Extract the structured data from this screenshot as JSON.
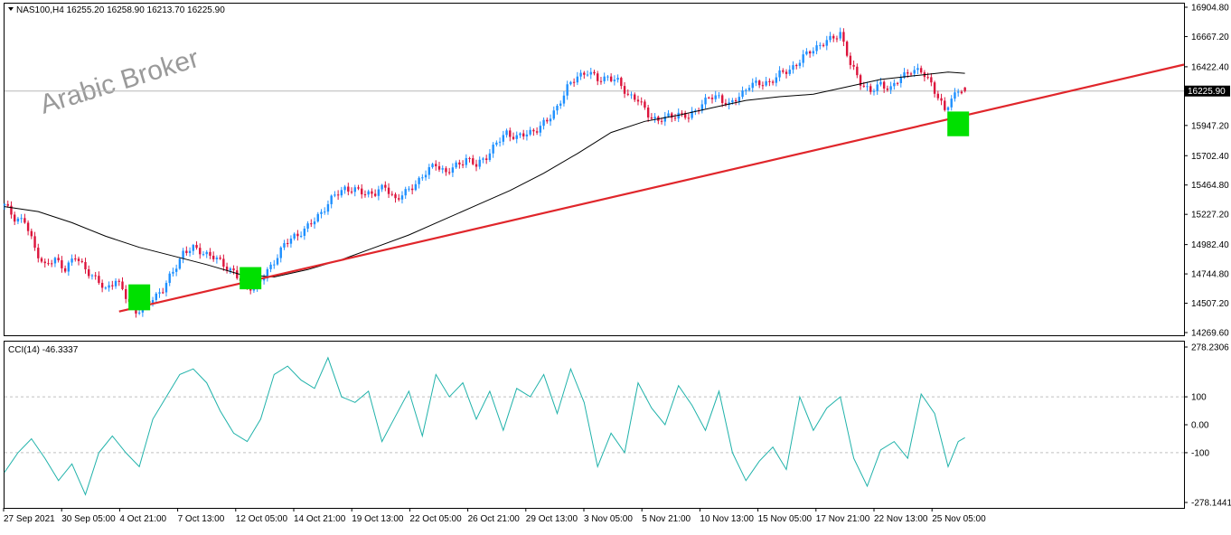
{
  "colors": {
    "bull": "#1e90ff",
    "bear": "#dc143c",
    "ma": "#000000",
    "trendline": "#e0262b",
    "marker": "#00e000",
    "cci": "#20b2aa",
    "grid": "#c0c0c0",
    "bg": "#ffffff"
  },
  "chart_data": [
    {
      "type": "candlestick",
      "title": "NAS100,H4  16255.20 16258.90 16213.70 16225.90",
      "symbol": "NAS100",
      "timeframe": "H4",
      "last_bar": {
        "open": 16255.2,
        "high": 16258.9,
        "low": 16213.7,
        "close": 16225.9
      },
      "current_price_label": "16225.90",
      "current_price": 16225.9,
      "watermark": "Arabic Broker",
      "ylim": [
        14269.6,
        16904.8
      ],
      "y_ticks": [
        "16904.80",
        "16667.20",
        "16422.40",
        "15947.20",
        "15702.40",
        "15464.80",
        "15227.20",
        "14982.40",
        "14744.80",
        "14507.20",
        "14269.60"
      ],
      "x_ticks": [
        "27 Sep 2021",
        "30 Sep 05:00",
        "4 Oct 21:00",
        "7 Oct 13:00",
        "12 Oct 05:00",
        "14 Oct 21:00",
        "19 Oct 13:00",
        "22 Oct 05:00",
        "26 Oct 21:00",
        "29 Oct 13:00",
        "3 Nov 05:00",
        "5 Nov 21:00",
        "10 Nov 13:00",
        "15 Nov 05:00",
        "17 Nov 21:00",
        "22 Nov 13:00",
        "25 Nov 05:00"
      ],
      "close_path": [
        [
          0,
          15300
        ],
        [
          3,
          15200
        ],
        [
          6,
          15170
        ],
        [
          9,
          14950
        ],
        [
          12,
          14810
        ],
        [
          15,
          14860
        ],
        [
          18,
          14790
        ],
        [
          21,
          14880
        ],
        [
          24,
          14790
        ],
        [
          27,
          14700
        ],
        [
          30,
          14620
        ],
        [
          33,
          14700
        ],
        [
          36,
          14560
        ],
        [
          39,
          14440
        ],
        [
          41,
          14470
        ],
        [
          44,
          14550
        ],
        [
          47,
          14620
        ],
        [
          50,
          14760
        ],
        [
          53,
          14920
        ],
        [
          56,
          14950
        ],
        [
          59,
          14920
        ],
        [
          62,
          14880
        ],
        [
          65,
          14820
        ],
        [
          68,
          14760
        ],
        [
          71,
          14650
        ],
        [
          74,
          14640
        ],
        [
          77,
          14720
        ],
        [
          80,
          14850
        ],
        [
          83,
          14980
        ],
        [
          86,
          15050
        ],
        [
          89,
          15100
        ],
        [
          92,
          15180
        ],
        [
          95,
          15280
        ],
        [
          98,
          15380
        ],
        [
          101,
          15440
        ],
        [
          104,
          15420
        ],
        [
          107,
          15400
        ],
        [
          110,
          15400
        ],
        [
          113,
          15450
        ],
        [
          116,
          15350
        ],
        [
          119,
          15400
        ],
        [
          122,
          15480
        ],
        [
          125,
          15560
        ],
        [
          128,
          15640
        ],
        [
          131,
          15560
        ],
        [
          134,
          15620
        ],
        [
          137,
          15680
        ],
        [
          140,
          15620
        ],
        [
          143,
          15700
        ],
        [
          146,
          15800
        ],
        [
          149,
          15890
        ],
        [
          152,
          15850
        ],
        [
          155,
          15880
        ],
        [
          158,
          15920
        ],
        [
          161,
          15980
        ],
        [
          164,
          16100
        ],
        [
          167,
          16250
        ],
        [
          170,
          16350
        ],
        [
          173,
          16380
        ],
        [
          176,
          16320
        ],
        [
          179,
          16340
        ],
        [
          182,
          16300
        ],
        [
          185,
          16200
        ],
        [
          188,
          16150
        ],
        [
          191,
          16040
        ],
        [
          194,
          15980
        ],
        [
          197,
          16020
        ],
        [
          200,
          16040
        ],
        [
          203,
          16010
        ],
        [
          206,
          16100
        ],
        [
          209,
          16170
        ],
        [
          212,
          16180
        ],
        [
          215,
          16110
        ],
        [
          218,
          16180
        ],
        [
          221,
          16280
        ],
        [
          224,
          16280
        ],
        [
          227,
          16300
        ],
        [
          230,
          16360
        ],
        [
          233,
          16400
        ],
        [
          236,
          16470
        ],
        [
          239,
          16550
        ],
        [
          242,
          16600
        ],
        [
          245,
          16640
        ],
        [
          248,
          16700
        ],
        [
          251,
          16440
        ],
        [
          254,
          16300
        ],
        [
          257,
          16220
        ],
        [
          260,
          16280
        ],
        [
          263,
          16250
        ],
        [
          266,
          16330
        ],
        [
          269,
          16400
        ],
        [
          272,
          16380
        ],
        [
          275,
          16290
        ],
        [
          277,
          16180
        ],
        [
          279,
          16060
        ],
        [
          281,
          16160
        ],
        [
          283,
          16240
        ],
        [
          285,
          16225.9
        ]
      ],
      "ma_path": [
        [
          0,
          15290
        ],
        [
          10,
          15250
        ],
        [
          20,
          15160
        ],
        [
          30,
          15050
        ],
        [
          40,
          14960
        ],
        [
          50,
          14890
        ],
        [
          60,
          14820
        ],
        [
          70,
          14740
        ],
        [
          80,
          14720
        ],
        [
          90,
          14780
        ],
        [
          100,
          14860
        ],
        [
          110,
          14960
        ],
        [
          120,
          15060
        ],
        [
          130,
          15180
        ],
        [
          140,
          15300
        ],
        [
          150,
          15420
        ],
        [
          160,
          15560
        ],
        [
          170,
          15720
        ],
        [
          180,
          15890
        ],
        [
          190,
          15980
        ],
        [
          200,
          16030
        ],
        [
          210,
          16090
        ],
        [
          220,
          16150
        ],
        [
          230,
          16180
        ],
        [
          240,
          16200
        ],
        [
          250,
          16260
        ],
        [
          260,
          16320
        ],
        [
          270,
          16350
        ],
        [
          280,
          16380
        ],
        [
          285,
          16370
        ]
      ],
      "trendline": {
        "start": [
          34,
          14440
        ],
        "end": [
          350,
          16440
        ]
      },
      "markers": [
        {
          "x": 40,
          "low": 14450,
          "high": 14660
        },
        {
          "x": 73,
          "low": 14620,
          "high": 14800
        },
        {
          "x": 283,
          "low": 15860,
          "high": 16060
        }
      ],
      "x_index_range": [
        0,
        350
      ]
    },
    {
      "type": "line",
      "title": "CCI(14) -46.3337",
      "indicator": "CCI(14)",
      "last_value": -46.3337,
      "ylim": [
        -278.1441,
        278.2306
      ],
      "y_ticks": [
        "278.2306",
        "100",
        "0.00",
        "-100",
        "-278.1441"
      ],
      "levels": [
        100,
        -100
      ],
      "series": [
        {
          "values": [
            [
              0,
              -170
            ],
            [
              4,
              -100
            ],
            [
              8,
              -50
            ],
            [
              12,
              -120
            ],
            [
              16,
              -200
            ],
            [
              20,
              -140
            ],
            [
              24,
              -250
            ],
            [
              28,
              -100
            ],
            [
              32,
              -40
            ],
            [
              36,
              -100
            ],
            [
              40,
              -150
            ],
            [
              44,
              20
            ],
            [
              48,
              100
            ],
            [
              52,
              180
            ],
            [
              56,
              200
            ],
            [
              60,
              150
            ],
            [
              64,
              50
            ],
            [
              68,
              -30
            ],
            [
              72,
              -60
            ],
            [
              76,
              20
            ],
            [
              80,
              180
            ],
            [
              84,
              210
            ],
            [
              88,
              160
            ],
            [
              92,
              130
            ],
            [
              96,
              240
            ],
            [
              100,
              100
            ],
            [
              104,
              80
            ],
            [
              108,
              120
            ],
            [
              112,
              -60
            ],
            [
              116,
              30
            ],
            [
              120,
              120
            ],
            [
              124,
              -40
            ],
            [
              128,
              180
            ],
            [
              132,
              100
            ],
            [
              136,
              150
            ],
            [
              140,
              20
            ],
            [
              144,
              120
            ],
            [
              148,
              -20
            ],
            [
              152,
              130
            ],
            [
              156,
              100
            ],
            [
              160,
              180
            ],
            [
              164,
              40
            ],
            [
              168,
              200
            ],
            [
              172,
              80
            ],
            [
              176,
              -150
            ],
            [
              180,
              -30
            ],
            [
              184,
              -100
            ],
            [
              188,
              150
            ],
            [
              192,
              60
            ],
            [
              196,
              0
            ],
            [
              200,
              140
            ],
            [
              204,
              70
            ],
            [
              208,
              -20
            ],
            [
              212,
              120
            ],
            [
              216,
              -100
            ],
            [
              220,
              -200
            ],
            [
              224,
              -130
            ],
            [
              228,
              -80
            ],
            [
              232,
              -160
            ],
            [
              236,
              100
            ],
            [
              240,
              -20
            ],
            [
              244,
              60
            ],
            [
              248,
              100
            ],
            [
              252,
              -120
            ],
            [
              256,
              -220
            ],
            [
              260,
              -90
            ],
            [
              264,
              -60
            ],
            [
              268,
              -120
            ],
            [
              272,
              110
            ],
            [
              276,
              40
            ],
            [
              280,
              -150
            ],
            [
              283,
              -60
            ],
            [
              285,
              -46.33
            ]
          ]
        }
      ]
    }
  ]
}
